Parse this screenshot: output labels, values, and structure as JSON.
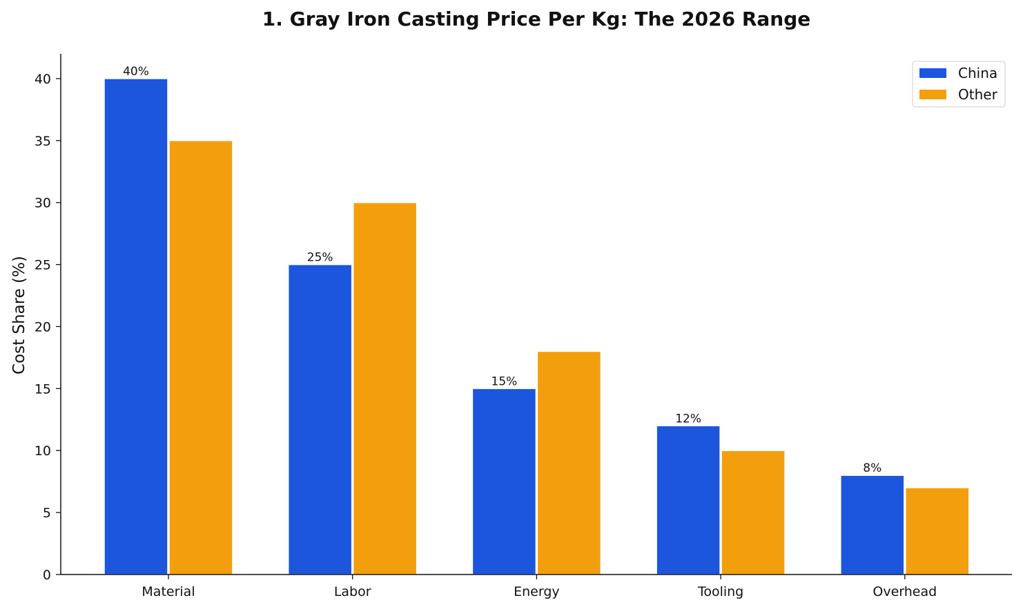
{
  "chart_data": {
    "type": "bar",
    "title": "1. Gray Iron Casting Price Per Kg: The 2026 Range",
    "xlabel": "",
    "ylabel": "Cost Share (%)",
    "categories": [
      "Material",
      "Labor",
      "Energy",
      "Tooling",
      "Overhead"
    ],
    "series": [
      {
        "name": "China",
        "values": [
          40,
          25,
          15,
          12,
          8
        ],
        "color": "#1c56dd",
        "show_labels": true
      },
      {
        "name": "Other",
        "values": [
          35,
          30,
          18,
          10,
          7
        ],
        "color": "#f39f0d",
        "show_labels": false
      }
    ],
    "data_labels": [
      "40%",
      "25%",
      "15%",
      "12%",
      "8%"
    ],
    "ylim": [
      0,
      42
    ],
    "yticks": [
      0,
      5,
      10,
      15,
      20,
      25,
      30,
      35,
      40
    ],
    "grid": false,
    "legend": "top-right"
  }
}
